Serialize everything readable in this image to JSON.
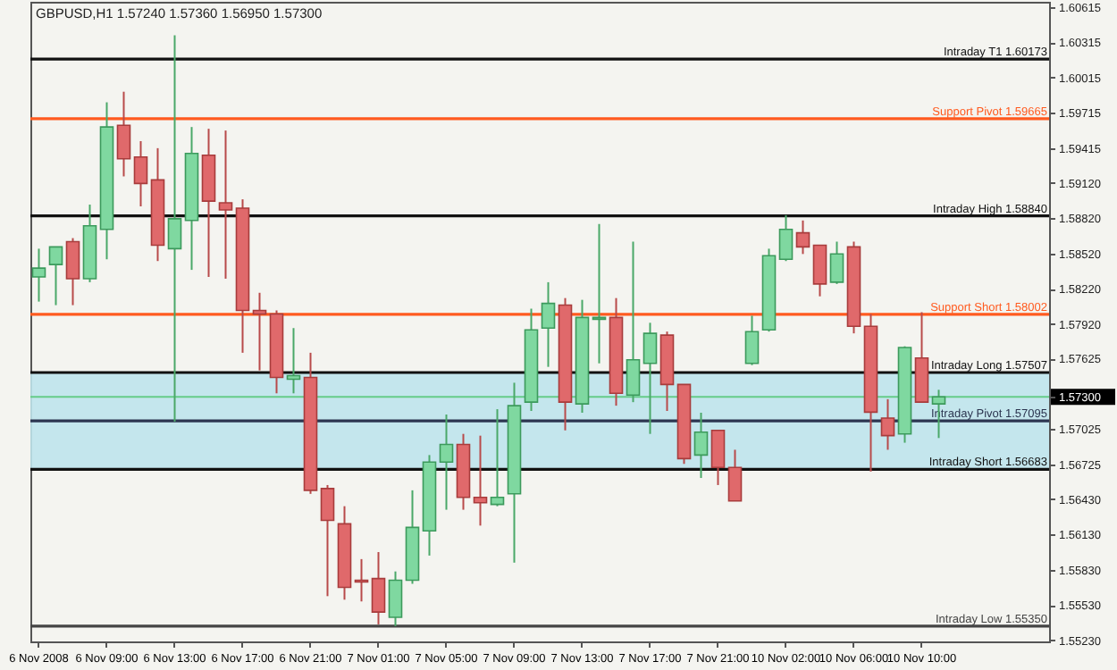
{
  "chart_data": {
    "type": "candlestick",
    "title": "GBPUSD,H1  1.57240 1.57360 1.56950 1.57300",
    "categories": [
      "6 Nov 2008",
      null,
      null,
      null,
      "6 Nov 09:00",
      null,
      null,
      null,
      "6 Nov 13:00",
      null,
      null,
      null,
      "6 Nov 17:00",
      null,
      null,
      null,
      "6 Nov 21:00",
      null,
      null,
      null,
      "7 Nov 01:00",
      null,
      null,
      null,
      "7 Nov 05:00",
      null,
      null,
      null,
      "7 Nov 09:00",
      null,
      null,
      null,
      "7 Nov 13:00",
      null,
      null,
      null,
      "7 Nov 17:00",
      null,
      null,
      null,
      "7 Nov 21:00",
      null,
      null,
      null,
      "10 Nov 02:00",
      null,
      null,
      null,
      "10 Nov 06:00",
      null,
      null,
      null,
      "10 Nov 10:00",
      null,
      null,
      null,
      null,
      null,
      null,
      null
    ],
    "ohlc": [
      [
        1.5832,
        1.5856,
        1.5811,
        1.58395
      ],
      [
        1.58425,
        1.58575,
        1.5808,
        1.58575
      ],
      [
        1.5862,
        1.5865,
        1.5808,
        1.58305
      ],
      [
        1.58305,
        1.58935,
        1.58275,
        1.58755
      ],
      [
        1.58725,
        1.59805,
        1.5847,
        1.59595
      ],
      [
        1.5961,
        1.59895,
        1.59175,
        1.59325
      ],
      [
        1.5934,
        1.59475,
        1.5892,
        1.59115
      ],
      [
        1.59145,
        1.59415,
        1.58455,
        1.5859
      ],
      [
        1.5856,
        1.60375,
        1.5709,
        1.58815
      ],
      [
        1.588,
        1.59595,
        1.5838,
        1.5937
      ],
      [
        1.59355,
        1.5958,
        1.5832,
        1.58965
      ],
      [
        1.5895,
        1.59565,
        1.58305,
        1.5889
      ],
      [
        1.58905,
        1.5898,
        1.57675,
        1.58035
      ],
      [
        1.58035,
        1.58185,
        1.57525,
        1.58005
      ],
      [
        1.58005,
        1.58035,
        1.5733,
        1.57465
      ],
      [
        1.5745,
        1.57885,
        1.5733,
        1.5748
      ],
      [
        1.57465,
        1.57675,
        1.56475,
        1.56505
      ],
      [
        1.5652,
        1.5655,
        1.55605,
        1.5625
      ],
      [
        1.5622,
        1.5637,
        1.55575,
        1.5568
      ],
      [
        1.5574,
        1.5592,
        1.5556,
        1.55725
      ],
      [
        1.55755,
        1.5598,
        1.55365,
        1.5547
      ],
      [
        1.55425,
        1.55815,
        1.5535,
        1.5574
      ],
      [
        1.5574,
        1.56505,
        1.5571,
        1.5619
      ],
      [
        1.5616,
        1.56805,
        1.5595,
        1.56745
      ],
      [
        1.56745,
        1.5715,
        1.5634,
        1.56895
      ],
      [
        1.56895,
        1.56985,
        1.5634,
        1.56445
      ],
      [
        1.56445,
        1.5697,
        1.56205,
        1.564
      ],
      [
        1.56385,
        1.57195,
        1.5637,
        1.56445
      ],
      [
        1.56475,
        1.5742,
        1.5589,
        1.57225
      ],
      [
        1.57255,
        1.5805,
        1.5718,
        1.5787
      ],
      [
        1.57885,
        1.58275,
        1.57555,
        1.58095
      ],
      [
        1.5808,
        1.5814,
        1.57015,
        1.57255
      ],
      [
        1.5724,
        1.58125,
        1.57165,
        1.57975
      ],
      [
        1.5796,
        1.5877,
        1.57585,
        1.57975
      ],
      [
        1.57975,
        1.5814,
        1.57225,
        1.5733
      ],
      [
        1.57315,
        1.5862,
        1.57255,
        1.57615
      ],
      [
        1.57585,
        1.5793,
        1.56985,
        1.5784
      ],
      [
        1.57825,
        1.57855,
        1.5718,
        1.57405
      ],
      [
        1.57405,
        1.57405,
        1.5673,
        1.56775
      ],
      [
        1.56805,
        1.57165,
        1.5661,
        1.57
      ],
      [
        1.57015,
        1.57015,
        1.5655,
        1.567
      ],
      [
        1.567,
        1.5685,
        1.56415,
        1.56415
      ],
      [
        1.57585,
        1.5799,
        1.5757,
        1.57855
      ],
      [
        1.5787,
        1.5856,
        1.57855,
        1.585
      ],
      [
        1.5847,
        1.58845,
        1.58455,
        1.58725
      ],
      [
        1.58695,
        1.588,
        1.58515,
        1.58575
      ],
      [
        1.5859,
        1.5859,
        1.58155,
        1.5826
      ],
      [
        1.58275,
        1.5862,
        1.5826,
        1.58515
      ],
      [
        1.58575,
        1.5862,
        1.5784,
        1.579
      ],
      [
        1.579,
        1.58005,
        1.56665,
        1.5717
      ],
      [
        1.5712,
        1.5728,
        1.5685,
        1.5697
      ],
      [
        1.56985,
        1.5773,
        1.5691,
        1.5772
      ],
      [
        1.5763,
        1.5802,
        1.57255,
        1.57255
      ],
      [
        1.5724,
        1.5736,
        1.5695,
        1.573
      ],
      null,
      null,
      null,
      null,
      null,
      null
    ],
    "ylim": [
      1.5522,
      1.6066
    ],
    "yticks": [
      {
        "value": 1.60615,
        "label": "1.60615"
      },
      {
        "value": 1.60315,
        "label": "1.60315"
      },
      {
        "value": 1.60015,
        "label": "1.60015"
      },
      {
        "value": 1.59715,
        "label": "1.59715"
      },
      {
        "value": 1.59415,
        "label": "1.59415"
      },
      {
        "value": 1.5912,
        "label": "1.59120"
      },
      {
        "value": 1.5882,
        "label": "1.58820"
      },
      {
        "value": 1.5852,
        "label": "1.58520"
      },
      {
        "value": 1.5822,
        "label": "1.58220"
      },
      {
        "value": 1.5792,
        "label": "1.57920"
      },
      {
        "value": 1.57625,
        "label": "1.57625"
      },
      {
        "value": 1.573,
        "label": "1.57300"
      },
      {
        "value": 1.57025,
        "label": "1.57025"
      },
      {
        "value": 1.56725,
        "label": "1.56725"
      },
      {
        "value": 1.5643,
        "label": "1.56430"
      },
      {
        "value": 1.5613,
        "label": "1.56130"
      },
      {
        "value": 1.5583,
        "label": "1.55830"
      },
      {
        "value": 1.5553,
        "label": "1.55530"
      },
      {
        "value": 1.5523,
        "label": "1.55230"
      }
    ],
    "ref_lines": [
      {
        "axis": "y",
        "value": 1.60173,
        "label": "Intraday  T1          1.60173",
        "color": "#111111"
      },
      {
        "axis": "y",
        "value": 1.59665,
        "label": "Support Pivot     1.59665",
        "color": "#ff5a1f"
      },
      {
        "axis": "y",
        "value": 1.5884,
        "label": "Intraday High     1.58840",
        "color": "#111111"
      },
      {
        "axis": "y",
        "value": 1.58002,
        "label": "Support Short     1.58002",
        "color": "#ff5a1f"
      },
      {
        "axis": "y",
        "value": 1.57507,
        "label": "Intraday Long     1.57507",
        "color": "#111111"
      },
      {
        "axis": "y",
        "value": 1.57095,
        "label": "Intraday Pivot     1.57095",
        "color": "#2c3550"
      },
      {
        "axis": "y",
        "value": 1.56683,
        "label": "Intraday Short     1.56683",
        "color": "#111111"
      },
      {
        "axis": "y",
        "value": 1.5535,
        "label": "Intraday Low     1.55350",
        "color": "#444444"
      },
      {
        "axis": "y",
        "value": 1.573,
        "color": "#66cc88"
      }
    ],
    "bands": [
      {
        "axis": "y",
        "from": 1.56683,
        "to": 1.57507,
        "color": "#bfe4ec"
      }
    ],
    "grid": false
  }
}
